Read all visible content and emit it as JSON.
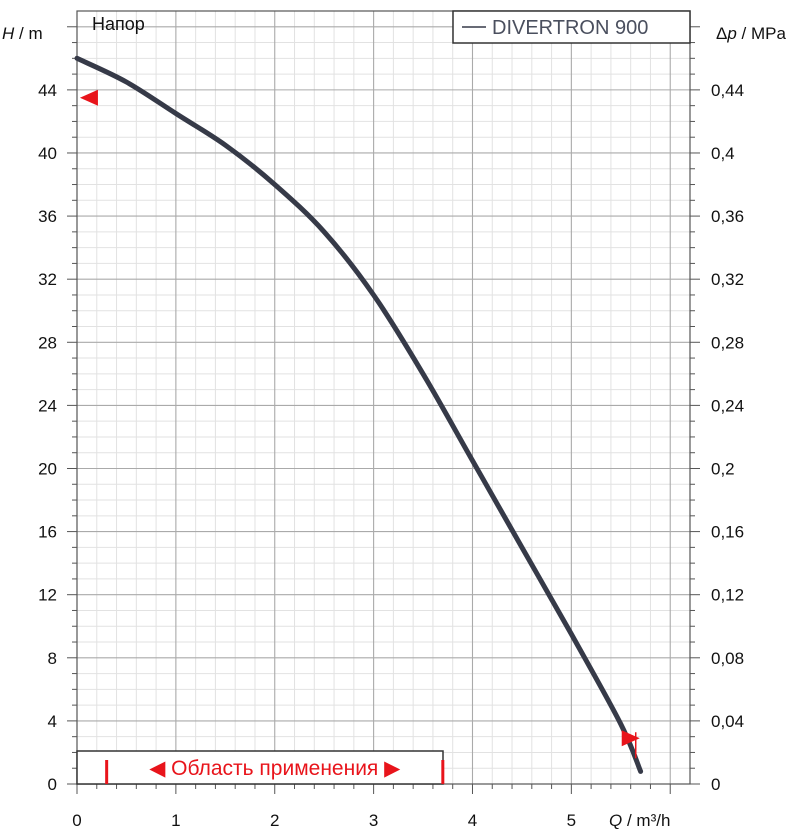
{
  "chart_data": {
    "type": "line",
    "title": "Напор",
    "xlabel": "Q",
    "xunit": " / m³/h",
    "ylabel": "H",
    "yunit": " / m",
    "y2label": "Δp",
    "y2unit": " / MPa",
    "xlim": [
      0,
      6.2
    ],
    "ylim": [
      0,
      49
    ],
    "y2lim": [
      0,
      0.49
    ],
    "x_ticks": [
      "0",
      "1",
      "2",
      "3",
      "4",
      "5"
    ],
    "y_ticks": [
      "0",
      "4",
      "8",
      "12",
      "16",
      "20",
      "24",
      "28",
      "32",
      "36",
      "40",
      "44"
    ],
    "y2_ticks": [
      "0",
      "0,04",
      "0,08",
      "0,12",
      "0,16",
      "0,2",
      "0,24",
      "0,28",
      "0,32",
      "0,36",
      "0,4",
      "0,44"
    ],
    "grid": true,
    "legend_position": "top-right",
    "series": [
      {
        "name": "DIVERTRON 900",
        "color": "#363a48",
        "x": [
          0,
          0.5,
          1.0,
          1.5,
          2.0,
          2.5,
          3.0,
          3.5,
          4.0,
          4.5,
          5.0,
          5.5,
          5.7
        ],
        "y": [
          46.0,
          44.5,
          42.5,
          40.5,
          38.0,
          35.0,
          31.0,
          26.0,
          20.5,
          15.0,
          9.5,
          3.8,
          0.8
        ]
      }
    ],
    "markers": {
      "color": "#e8141b",
      "start_marker": {
        "x": 0.05,
        "y": 43.5
      },
      "end_marker": {
        "x": 5.55,
        "y": 2.9
      }
    },
    "application_range": {
      "label": "◀ Область применения ▶",
      "x_min": 0.3,
      "x_max": 3.7,
      "color": "#e8141b"
    }
  }
}
